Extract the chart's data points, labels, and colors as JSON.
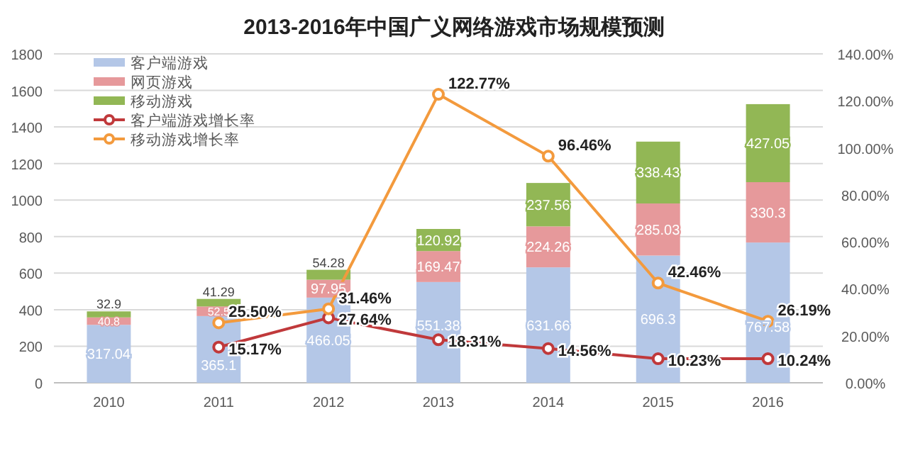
{
  "chart_data": {
    "type": "bar",
    "title": "2013-2016年中国广义网络游戏市场规模预测",
    "categories": [
      "2010",
      "2011",
      "2012",
      "2013",
      "2014",
      "2015",
      "2016"
    ],
    "stacked": true,
    "grid": "y",
    "legend": "top left",
    "ylim": [
      0,
      1800
    ],
    "yticks": [
      0,
      200,
      400,
      600,
      800,
      1000,
      1200,
      1400,
      1600,
      1800
    ],
    "y2lim": [
      0,
      140
    ],
    "y2ticks": [
      {
        "value": 0,
        "label": "0.00%"
      },
      {
        "value": 20,
        "label": "20.00%"
      },
      {
        "value": 40,
        "label": "40.00%"
      },
      {
        "value": 60,
        "label": "60.00%"
      },
      {
        "value": 80,
        "label": "80.00%"
      },
      {
        "value": 100,
        "label": "100.00%"
      },
      {
        "value": 120,
        "label": "120.00%"
      },
      {
        "value": 140,
        "label": "140.00%"
      }
    ],
    "series": [
      {
        "name": "客户端游戏",
        "color": "#b4c7e7",
        "values": [
          317.04,
          365.1,
          466.05,
          551.38,
          631.66,
          696.3,
          767.58
        ],
        "value_labels": [
          "317.04",
          "365.1",
          "466.05",
          "551.38",
          "631.66",
          "696.3",
          "767.58"
        ]
      },
      {
        "name": "网页游戏",
        "color": "#e6999b",
        "values": [
          40.8,
          52.5,
          97.95,
          169.47,
          224.26,
          285.03,
          330.3
        ],
        "value_labels": [
          "40.8",
          "52.5",
          "97.95",
          "169.47",
          "224.26",
          "285.03",
          "330.3"
        ]
      },
      {
        "name": "移动游戏",
        "color": "#92b755",
        "values": [
          32.9,
          41.29,
          54.28,
          120.92,
          237.56,
          338.43,
          427.05
        ],
        "value_labels": [
          "32.9",
          "41.29",
          "54.28",
          "120.92",
          "237.56",
          "338.43",
          "427.05"
        ]
      },
      {
        "name": "客户端游戏增长率",
        "type": "line",
        "axis": "y2",
        "marker": "circle",
        "color": "#c0393b",
        "values": [
          null,
          15.17,
          27.64,
          18.31,
          14.56,
          10.23,
          10.24
        ],
        "value_labels": [
          null,
          "15.17%",
          "27.64%",
          "18.31%",
          "14.56%",
          "10.23%",
          "10.24%"
        ]
      },
      {
        "name": "移动游戏增长率",
        "type": "line",
        "axis": "y2",
        "marker": "circle",
        "color": "#f39a3d",
        "values": [
          null,
          25.5,
          31.46,
          122.77,
          96.46,
          42.46,
          26.19
        ],
        "value_labels": [
          null,
          "25.50%",
          "31.46%",
          "122.77%",
          "96.46%",
          "42.46%",
          "26.19%"
        ]
      }
    ]
  }
}
